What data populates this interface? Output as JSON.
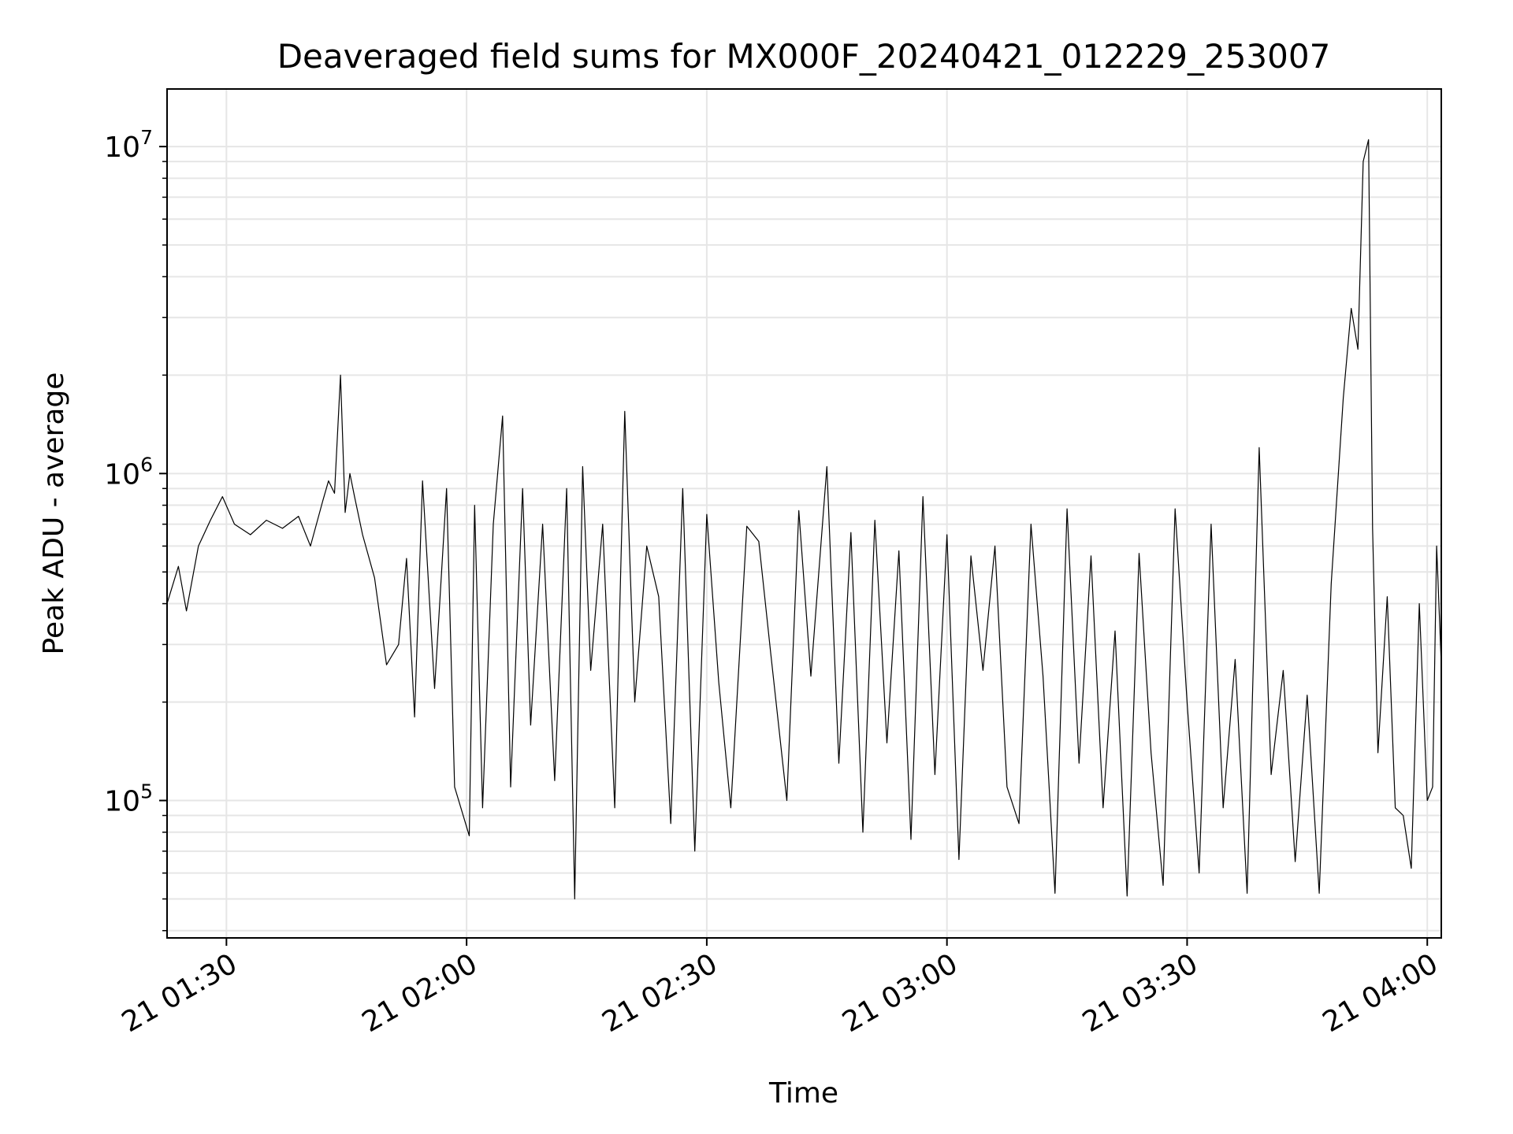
{
  "chart_data": {
    "type": "line",
    "title": "Deaveraged field sums for MX000F_20240421_012229_253007",
    "xlabel": "Time",
    "ylabel": "Peak ADU - average",
    "y_scale": "log",
    "ylim": [
      38000,
      15000000
    ],
    "xlim": [
      "2024-04-21 01:22:35",
      "2024-04-21 04:01:45"
    ],
    "grid": true,
    "line_color": "#000000",
    "x_ticks": [
      {
        "value": "2024-04-21 01:30:00",
        "label": "21 01:30"
      },
      {
        "value": "2024-04-21 02:00:00",
        "label": "21 02:00"
      },
      {
        "value": "2024-04-21 02:30:00",
        "label": "21 02:30"
      },
      {
        "value": "2024-04-21 03:00:00",
        "label": "21 03:00"
      },
      {
        "value": "2024-04-21 03:30:00",
        "label": "21 03:30"
      },
      {
        "value": "2024-04-21 04:00:00",
        "label": "21 04:00"
      }
    ],
    "y_ticks": [
      {
        "value": 100000,
        "base": "10",
        "exp": "5"
      },
      {
        "value": 1000000,
        "base": "10",
        "exp": "6"
      },
      {
        "value": 10000000,
        "base": "10",
        "exp": "7"
      }
    ],
    "series": [
      {
        "x": [
          "2024-04-21 01:22:35",
          "2024-04-21 01:24:00",
          "2024-04-21 01:25:00",
          "2024-04-21 01:26:30",
          "2024-04-21 01:28:00",
          "2024-04-21 01:29:30",
          "2024-04-21 01:31:00",
          "2024-04-21 01:33:00",
          "2024-04-21 01:35:00",
          "2024-04-21 01:37:00",
          "2024-04-21 01:39:00",
          "2024-04-21 01:40:30",
          "2024-04-21 01:42:00",
          "2024-04-21 01:42:45",
          "2024-04-21 01:43:30",
          "2024-04-21 01:44:15",
          "2024-04-21 01:44:50",
          "2024-04-21 01:45:25",
          "2024-04-21 01:46:00",
          "2024-04-21 01:47:00",
          "2024-04-21 01:48:30",
          "2024-04-21 01:50:00",
          "2024-04-21 01:51:30",
          "2024-04-21 01:52:30",
          "2024-04-21 01:53:30",
          "2024-04-21 01:54:30",
          "2024-04-21 01:56:00",
          "2024-04-21 01:57:30",
          "2024-04-21 01:58:30",
          "2024-04-21 02:00:20",
          "2024-04-21 02:01:00",
          "2024-04-21 02:02:00",
          "2024-04-21 02:03:20",
          "2024-04-21 02:04:30",
          "2024-04-21 02:05:30",
          "2024-04-21 02:07:00",
          "2024-04-21 02:08:00",
          "2024-04-21 02:09:30",
          "2024-04-21 02:11:00",
          "2024-04-21 02:12:30",
          "2024-04-21 02:13:30",
          "2024-04-21 02:14:30",
          "2024-04-21 02:15:30",
          "2024-04-21 02:17:00",
          "2024-04-21 02:18:30",
          "2024-04-21 02:19:45",
          "2024-04-21 02:21:00",
          "2024-04-21 02:22:30",
          "2024-04-21 02:24:00",
          "2024-04-21 02:25:30",
          "2024-04-21 02:27:00",
          "2024-04-21 02:28:30",
          "2024-04-21 02:30:00",
          "2024-04-21 02:31:30",
          "2024-04-21 02:33:00",
          "2024-04-21 02:35:00",
          "2024-04-21 02:36:30",
          "2024-04-21 02:38:00",
          "2024-04-21 02:40:00",
          "2024-04-21 02:41:30",
          "2024-04-21 02:43:00",
          "2024-04-21 02:45:00",
          "2024-04-21 02:46:30",
          "2024-04-21 02:48:00",
          "2024-04-21 02:49:30",
          "2024-04-21 02:51:00",
          "2024-04-21 02:52:30",
          "2024-04-21 02:54:00",
          "2024-04-21 02:55:30",
          "2024-04-21 02:57:00",
          "2024-04-21 02:58:30",
          "2024-04-21 03:00:00",
          "2024-04-21 03:01:30",
          "2024-04-21 03:03:00",
          "2024-04-21 03:04:30",
          "2024-04-21 03:06:00",
          "2024-04-21 03:07:30",
          "2024-04-21 03:09:00",
          "2024-04-21 03:10:30",
          "2024-04-21 03:12:00",
          "2024-04-21 03:13:30",
          "2024-04-21 03:15:00",
          "2024-04-21 03:16:30",
          "2024-04-21 03:18:00",
          "2024-04-21 03:19:30",
          "2024-04-21 03:21:00",
          "2024-04-21 03:22:30",
          "2024-04-21 03:24:00",
          "2024-04-21 03:25:30",
          "2024-04-21 03:27:00",
          "2024-04-21 03:28:30",
          "2024-04-21 03:30:00",
          "2024-04-21 03:31:30",
          "2024-04-21 03:33:00",
          "2024-04-21 03:34:30",
          "2024-04-21 03:36:00",
          "2024-04-21 03:37:30",
          "2024-04-21 03:39:00",
          "2024-04-21 03:40:30",
          "2024-04-21 03:42:00",
          "2024-04-21 03:43:30",
          "2024-04-21 03:45:00",
          "2024-04-21 03:46:30",
          "2024-04-21 03:48:00",
          "2024-04-21 03:49:30",
          "2024-04-21 03:50:30",
          "2024-04-21 03:51:20",
          "2024-04-21 03:52:00",
          "2024-04-21 03:52:40",
          "2024-04-21 03:53:10",
          "2024-04-21 03:53:50",
          "2024-04-21 03:55:00",
          "2024-04-21 03:56:00",
          "2024-04-21 03:57:00",
          "2024-04-21 03:58:00",
          "2024-04-21 03:59:00",
          "2024-04-21 04:00:00",
          "2024-04-21 04:00:40",
          "2024-04-21 04:01:10",
          "2024-04-21 04:01:45"
        ],
        "values": [
          400000,
          520000,
          380000,
          600000,
          720000,
          850000,
          700000,
          650000,
          720000,
          680000,
          740000,
          600000,
          820000,
          950000,
          870000,
          2000000,
          760000,
          1000000,
          850000,
          650000,
          480000,
          260000,
          300000,
          550000,
          180000,
          950000,
          220000,
          900000,
          110000,
          78000,
          800000,
          95000,
          700000,
          1500000,
          110000,
          900000,
          170000,
          700000,
          115000,
          900000,
          50000,
          1050000,
          250000,
          700000,
          95000,
          1550000,
          200000,
          600000,
          420000,
          85000,
          900000,
          70000,
          750000,
          230000,
          95000,
          690000,
          620000,
          280000,
          100000,
          770000,
          240000,
          1050000,
          130000,
          660000,
          80000,
          720000,
          150000,
          580000,
          76000,
          850000,
          120000,
          650000,
          66000,
          560000,
          250000,
          600000,
          110000,
          85000,
          700000,
          240000,
          52000,
          780000,
          130000,
          560000,
          95000,
          330000,
          51000,
          570000,
          140000,
          55000,
          780000,
          200000,
          60000,
          700000,
          95000,
          270000,
          52000,
          1200000,
          120000,
          250000,
          65000,
          210000,
          52000,
          460000,
          1700000,
          3200000,
          2400000,
          9000000,
          10500000,
          680000,
          140000,
          420000,
          95000,
          90000,
          62000,
          400000,
          100000,
          110000,
          600000,
          260000
        ]
      }
    ]
  }
}
